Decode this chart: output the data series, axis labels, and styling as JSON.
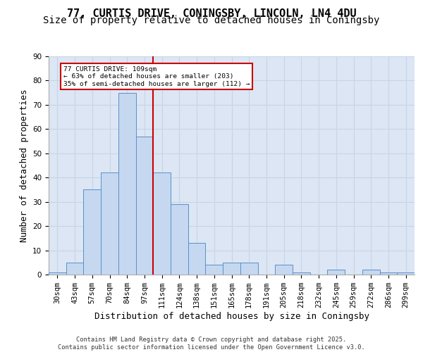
{
  "title1": "77, CURTIS DRIVE, CONINGSBY, LINCOLN, LN4 4DU",
  "title2": "Size of property relative to detached houses in Coningsby",
  "xlabel": "Distribution of detached houses by size in Coningsby",
  "ylabel": "Number of detached properties",
  "categories": [
    "30sqm",
    "43sqm",
    "57sqm",
    "70sqm",
    "84sqm",
    "97sqm",
    "111sqm",
    "124sqm",
    "138sqm",
    "151sqm",
    "165sqm",
    "178sqm",
    "191sqm",
    "205sqm",
    "218sqm",
    "232sqm",
    "245sqm",
    "259sqm",
    "272sqm",
    "286sqm",
    "299sqm"
  ],
  "values": [
    1,
    5,
    35,
    42,
    75,
    57,
    42,
    29,
    13,
    4,
    5,
    5,
    0,
    4,
    1,
    0,
    2,
    0,
    2,
    1,
    1
  ],
  "bar_color": "#c5d8f0",
  "bar_edge_color": "#5b8fc9",
  "vline_color": "#cc0000",
  "vline_x_index": 6,
  "annotation_text": "77 CURTIS DRIVE: 109sqm\n← 63% of detached houses are smaller (203)\n35% of semi-detached houses are larger (112) →",
  "annotation_box_color": "#ffffff",
  "annotation_box_edge": "#cc0000",
  "grid_color": "#c8d4e8",
  "background_color": "#dce6f4",
  "fig_color": "#ffffff",
  "ylim": [
    0,
    90
  ],
  "yticks": [
    0,
    10,
    20,
    30,
    40,
    50,
    60,
    70,
    80,
    90
  ],
  "footer": "Contains HM Land Registry data © Crown copyright and database right 2025.\nContains public sector information licensed under the Open Government Licence v3.0.",
  "title_fontsize": 11,
  "subtitle_fontsize": 10,
  "tick_fontsize": 7.5,
  "label_fontsize": 9,
  "footer_fontsize": 6.2
}
